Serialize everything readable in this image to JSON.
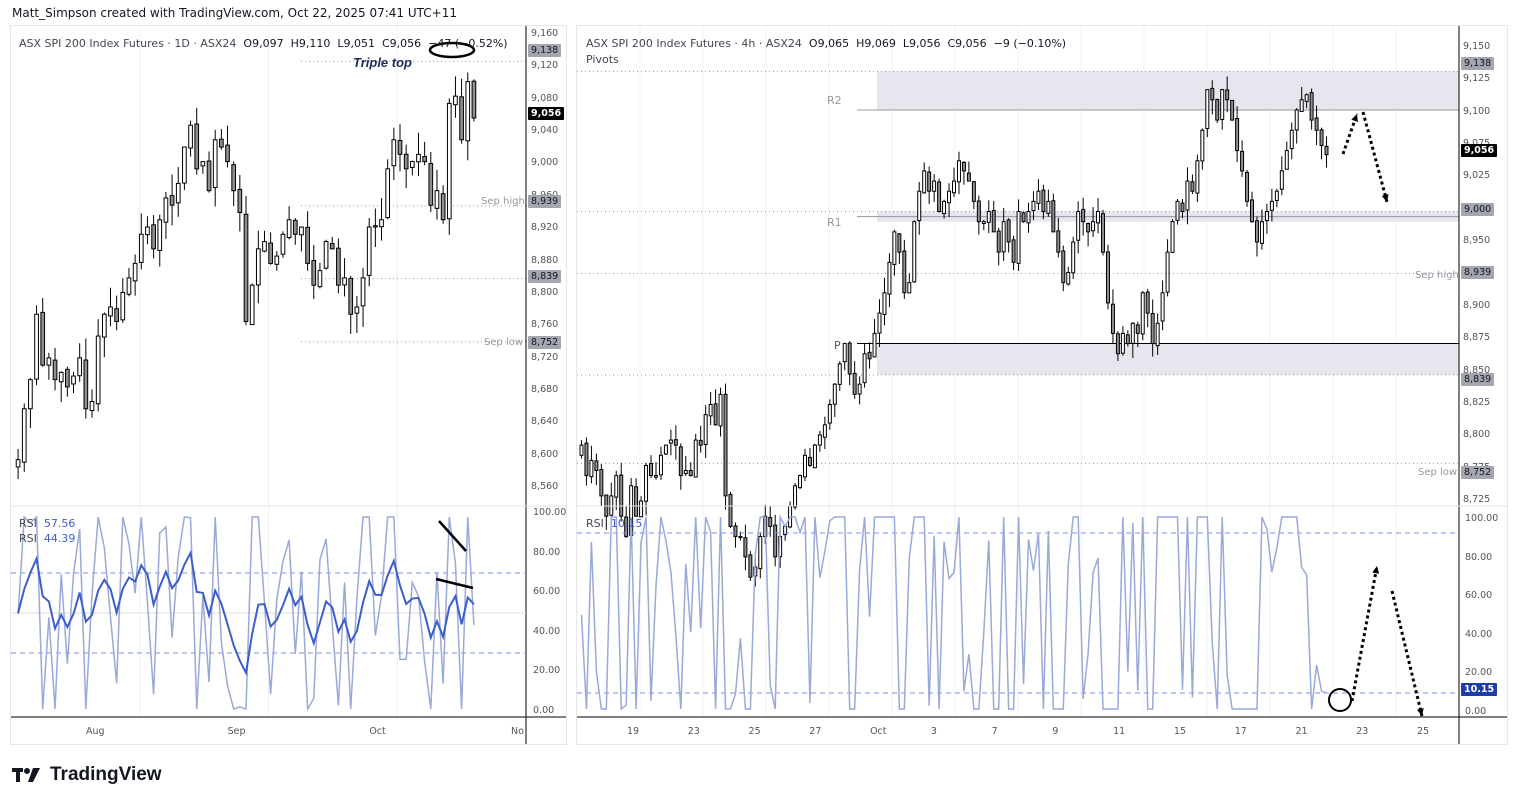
{
  "credit": "Matt_Simpson created with TradingView.com, Oct 22, 2025 07:41 UTC+11",
  "brand": {
    "name": "TradingView",
    "logo_icon": "tradingview-logo-icon"
  },
  "colors": {
    "candle_up": "#ffffff",
    "candle_down": "#8c8f96",
    "candle_border": "#000000",
    "rsi_fast": "#9aa9d8",
    "rsi_slow": "#3d5ec9",
    "zone_fill": "#e6e7ee",
    "last_price_bg": "#000000",
    "level_tag_bg": "#a3a6af",
    "rsi_tag_bg": "#1e3da8"
  },
  "left": {
    "legend": {
      "symbol": "ASX SPI 200 Index Futures · 1D · ASX24",
      "o": "O9,097",
      "h": "H9,110",
      "l": "L9,051",
      "c": "C9,056",
      "chg": "−47 (−0.52%)"
    },
    "annotation": "Triple top",
    "price_axis": [
      "9,160",
      "9,120",
      "9,080",
      "9,040",
      "9,000",
      "8,960",
      "8,920",
      "8,880",
      "8,800",
      "8,760",
      "8,720",
      "8,680",
      "8,640",
      "8,600",
      "8,560"
    ],
    "tags": {
      "top": "9,138",
      "last": "9,056",
      "sep_high": "8,939",
      "mid": "8,839",
      "sep_low": "8,752"
    },
    "level_notes": {
      "sep_high": "Sep high",
      "sep_low": "Sep low"
    },
    "rsi": {
      "label": "RSI",
      "v1": "57.56",
      "v2": "44.39",
      "axis": [
        "100.00",
        "80.00",
        "60.00",
        "40.00",
        "20.00",
        "0.00"
      ]
    },
    "time_axis": [
      "Aug",
      "Sep",
      "Oct",
      "No"
    ]
  },
  "right": {
    "legend": {
      "symbol": "ASX SPI 200 Index Futures · 4h · ASX24",
      "o": "O9,065",
      "h": "H9,069",
      "l": "L9,056",
      "c": "C9,056",
      "chg": "−9 (−0.10%)"
    },
    "indicator": "Pivots",
    "pivot_labels": {
      "r2": "R2",
      "r1": "R1",
      "p": "P"
    },
    "price_axis": [
      "9,150",
      "9,125",
      "9,100",
      "9,075",
      "9,025",
      "8,975",
      "8,950",
      "8,925",
      "8,900",
      "8,875",
      "8,850",
      "8,825",
      "8,800",
      "8,775",
      "8,725"
    ],
    "tags": {
      "top": "9,138",
      "last": "9,056",
      "r1zone": "9,000",
      "sep_high": "8,939",
      "mid": "8,839",
      "sep_low": "8,752"
    },
    "level_notes": {
      "sep_high": "Sep high",
      "sep_low": "Sep low"
    },
    "rsi": {
      "label": "RSI",
      "v1": "10.15",
      "axis": [
        "100.00",
        "80.00",
        "60.00",
        "40.00",
        "20.00",
        "0.00"
      ]
    },
    "time_axis": [
      "19",
      "23",
      "25",
      "27",
      "Oct",
      "3",
      "7",
      "9",
      "11",
      "15",
      "17",
      "21",
      "23",
      "25"
    ]
  },
  "chart_data": [
    {
      "type": "candlestick",
      "title": "ASX SPI 200 Index Futures · 1D · ASX24",
      "ohlc_last": {
        "open": 9097,
        "high": 9110,
        "low": 9051,
        "close": 9056,
        "change": -47,
        "change_pct": -0.52
      },
      "ylim": [
        8540,
        9170
      ],
      "x_ticks": [
        "Aug",
        "Sep",
        "Oct",
        "No"
      ],
      "levels": [
        {
          "label": "Triple top",
          "value": 9138
        },
        {
          "label": "Sep high",
          "value": 8939
        },
        {
          "value": 8839
        },
        {
          "label": "Sep low",
          "value": 8752
        }
      ],
      "closes": [
        8590,
        8660,
        8700,
        8790,
        8720,
        8730,
        8700,
        8710,
        8690,
        8705,
        8730,
        8660,
        8670,
        8760,
        8790,
        8800,
        8780,
        8820,
        8840,
        8860,
        8900,
        8910,
        8880,
        8920,
        8950,
        8940,
        8970,
        9020,
        9050,
        8990,
        9000,
        8960,
        9030,
        9020,
        9000,
        8960,
        8930,
        8780,
        8830,
        8880,
        8890,
        8860,
        8870,
        8900,
        8920,
        8900,
        8910,
        8860,
        8830,
        8850,
        8890,
        8880,
        8830,
        8840,
        8790,
        8800,
        8840,
        8910,
        8910,
        8920,
        8990,
        9030,
        9010,
        8990,
        9000,
        9010,
        9000,
        8940,
        8960,
        8920,
        9080,
        9090,
        9030,
        9110,
        9060
      ],
      "rsi": {
        "fast_last": 57.56,
        "slow_last": 44.39,
        "ylim": [
          0,
          100
        ],
        "bands": [
          30,
          50,
          70
        ]
      }
    },
    {
      "type": "candlestick",
      "title": "ASX SPI 200 Index Futures · 4h · ASX24",
      "ohlc_last": {
        "open": 9065,
        "high": 9069,
        "low": 9056,
        "close": 9056,
        "change": -9,
        "change_pct": -0.1
      },
      "ylim": [
        8715,
        9160
      ],
      "x_ticks": [
        "19",
        "23",
        "25",
        "27",
        "Oct",
        "3",
        "7",
        "9",
        "11",
        "15",
        "17",
        "21",
        "23",
        "25"
      ],
      "pivots": {
        "R2": 9100,
        "R1": 8995,
        "P": 8870
      },
      "zones": [
        [
          9100,
          9138
        ],
        [
          8990,
          9000
        ],
        [
          8839,
          8870
        ]
      ],
      "levels": [
        {
          "value": 9138
        },
        {
          "value": 9000
        },
        {
          "label": "Sep high",
          "value": 8939
        },
        {
          "value": 8839
        },
        {
          "label": "Sep low",
          "value": 8752
        }
      ],
      "closes": [
        8770,
        8740,
        8755,
        8745,
        8720,
        8700,
        8720,
        8740,
        8700,
        8680,
        8730,
        8700,
        8715,
        8750,
        8740,
        8740,
        8760,
        8770,
        8775,
        8770,
        8740,
        8745,
        8740,
        8775,
        8770,
        8800,
        8810,
        8790,
        8820,
        8720,
        8690,
        8680,
        8680,
        8660,
        8640,
        8650,
        8680,
        8700,
        8690,
        8660,
        8680,
        8690,
        8710,
        8730,
        8740,
        8760,
        8750,
        8770,
        8780,
        8790,
        8810,
        8830,
        8850,
        8870,
        8840,
        8820,
        8830,
        8860,
        8855,
        8880,
        8900,
        8920,
        8950,
        8980,
        8960,
        8920,
        8930,
        8990,
        9020,
        9040,
        9020,
        9030,
        9000,
        9010,
        9020,
        9030,
        9050,
        9040,
        9030,
        9010,
        8990,
        8990,
        9000,
        8980,
        8960,
        8990,
        8970,
        8950,
        9000,
        8990,
        9000,
        9010,
        9020,
        9000,
        9010,
        8980,
        8960,
        8930,
        8940,
        8970,
        9000,
        8990,
        8980,
        8990,
        9000,
        8960,
        8910,
        8880,
        8860,
        8880,
        8870,
        8890,
        8880,
        8920,
        8900,
        8870,
        8890,
        8920,
        8960,
        8990,
        9010,
        9000,
        9030,
        9020,
        9050,
        9080,
        9120,
        9110,
        9090,
        9120,
        9110,
        9090,
        9060,
        9040,
        9010,
        8990,
        8970,
        8990,
        9000,
        9010,
        9020,
        9040,
        9060,
        9080,
        9100,
        9110,
        9115,
        9090,
        9080,
        9065,
        9056
      ],
      "rsi": {
        "last": 10.15,
        "ylim": [
          0,
          100
        ],
        "bands": [
          10,
          90
        ]
      }
    }
  ]
}
